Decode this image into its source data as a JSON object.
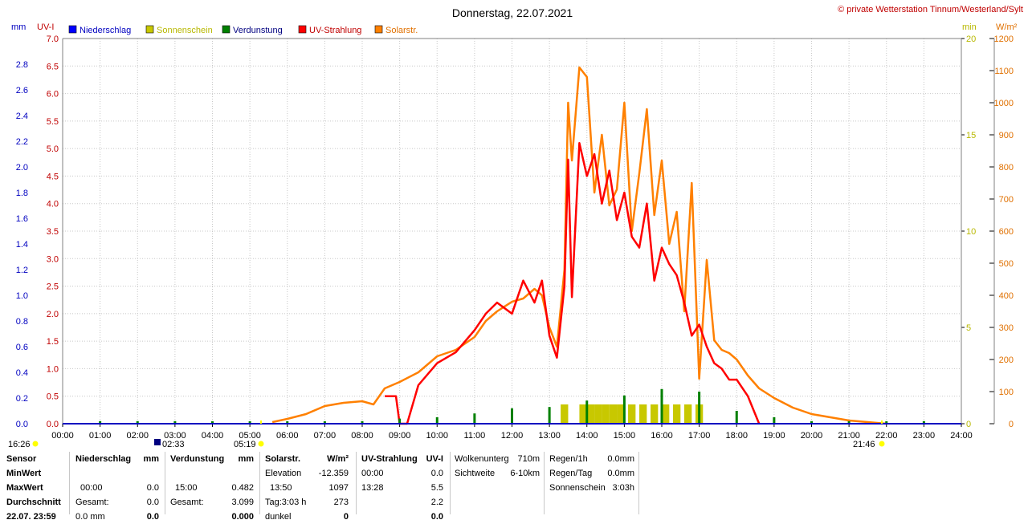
{
  "title": "Donnerstag, 22.07.2021",
  "copyright": "© private Wetterstation Tinnum/Westerland/Sylt",
  "units": {
    "mm": "mm",
    "uvi": "UV-I",
    "min": "min",
    "wm2": "W/m²"
  },
  "legend": [
    {
      "label": "Niederschlag",
      "color": "#0000ff",
      "text_color": "#0000c0"
    },
    {
      "label": "Sonnenschein",
      "color": "#c8c800",
      "text_color": "#b8b800"
    },
    {
      "label": "Verdunstung",
      "color": "#008000",
      "text_color": "#000080"
    },
    {
      "label": "UV-Strahlung",
      "color": "#ff0000",
      "text_color": "#c00000"
    },
    {
      "label": "Solarstr.",
      "color": "#ff8000",
      "text_color": "#e07000"
    }
  ],
  "sun_markers": {
    "sunrise": "05:19",
    "sunset": "21:46",
    "moon_left": "16:26",
    "moon_mid": "02:33"
  },
  "chart_data": {
    "type": "line",
    "x_ticks": [
      "00:00",
      "01:00",
      "02:00",
      "03:00",
      "04:00",
      "05:00",
      "06:00",
      "07:00",
      "08:00",
      "09:00",
      "10:00",
      "11:00",
      "12:00",
      "13:00",
      "14:00",
      "15:00",
      "16:00",
      "17:00",
      "18:00",
      "19:00",
      "20:00",
      "21:00",
      "22:00",
      "23:00",
      "24:00"
    ],
    "xlim": [
      0,
      24
    ],
    "axes": {
      "mm": {
        "lim": [
          0,
          3.0
        ],
        "ticks": [
          "0.0",
          "0.2",
          "0.4",
          "0.6",
          "0.8",
          "1.0",
          "1.2",
          "1.4",
          "1.6",
          "1.8",
          "2.0",
          "2.2",
          "2.4",
          "2.6",
          "2.8"
        ]
      },
      "uvi": {
        "lim": [
          0,
          7.0
        ],
        "ticks": [
          "0.0",
          "0.5",
          "1.0",
          "1.5",
          "2.0",
          "2.5",
          "3.0",
          "3.5",
          "4.0",
          "4.5",
          "5.0",
          "5.5",
          "6.0",
          "6.5",
          "7.0"
        ]
      },
      "min": {
        "lim": [
          0,
          20
        ],
        "ticks": [
          "0",
          "5",
          "10",
          "15",
          "20"
        ]
      },
      "wm2": {
        "lim": [
          0,
          1200
        ],
        "ticks": [
          "0",
          "100",
          "200",
          "300",
          "400",
          "500",
          "600",
          "700",
          "800",
          "900",
          "1000",
          "1100",
          "1200"
        ]
      }
    },
    "series": [
      {
        "name": "Solarstr.",
        "axis": "wm2",
        "color": "#ff8000",
        "x": [
          5.6,
          6.0,
          6.5,
          7.0,
          7.5,
          8.0,
          8.3,
          8.6,
          9.0,
          9.5,
          10.0,
          10.5,
          11.0,
          11.3,
          11.6,
          12.0,
          12.3,
          12.6,
          12.8,
          13.0,
          13.2,
          13.4,
          13.5,
          13.6,
          13.8,
          14.0,
          14.2,
          14.4,
          14.6,
          14.8,
          15.0,
          15.2,
          15.4,
          15.6,
          15.8,
          16.0,
          16.2,
          16.4,
          16.6,
          16.8,
          17.0,
          17.2,
          17.4,
          17.6,
          17.8,
          18.0,
          18.3,
          18.6,
          19.0,
          19.5,
          20.0,
          20.5,
          21.0,
          21.5,
          22.0
        ],
        "y": [
          5,
          15,
          30,
          55,
          65,
          70,
          60,
          110,
          130,
          160,
          210,
          230,
          270,
          320,
          350,
          380,
          390,
          420,
          400,
          300,
          240,
          480,
          1000,
          820,
          1110,
          1080,
          720,
          900,
          680,
          730,
          1000,
          600,
          780,
          980,
          650,
          820,
          560,
          660,
          350,
          750,
          140,
          510,
          260,
          230,
          220,
          200,
          150,
          110,
          80,
          50,
          30,
          20,
          10,
          5,
          0
        ]
      },
      {
        "name": "UV-Strahlung",
        "axis": "uvi",
        "color": "#ff0000",
        "x": [
          8.6,
          8.9,
          9.0,
          9.2,
          9.5,
          10.0,
          10.5,
          11.0,
          11.3,
          11.6,
          12.0,
          12.3,
          12.6,
          12.8,
          13.0,
          13.2,
          13.4,
          13.5,
          13.6,
          13.8,
          14.0,
          14.2,
          14.4,
          14.6,
          14.8,
          15.0,
          15.2,
          15.4,
          15.6,
          15.8,
          16.0,
          16.2,
          16.4,
          16.6,
          16.8,
          17.0,
          17.2,
          17.4,
          17.6,
          17.8,
          18.0,
          18.3,
          18.6
        ],
        "y": [
          0.5,
          0.5,
          0.0,
          0.0,
          0.7,
          1.1,
          1.3,
          1.7,
          2.0,
          2.2,
          2.0,
          2.6,
          2.2,
          2.6,
          1.6,
          1.2,
          2.5,
          4.8,
          2.3,
          5.1,
          4.5,
          4.9,
          4.0,
          4.6,
          3.7,
          4.2,
          3.4,
          3.2,
          4.0,
          2.6,
          3.2,
          2.9,
          2.7,
          2.2,
          1.6,
          1.8,
          1.4,
          1.1,
          1.0,
          0.8,
          0.8,
          0.5,
          0.0
        ]
      }
    ],
    "bars": [
      {
        "name": "Verdunstung",
        "axis": "mm",
        "color": "#008000",
        "x": [
          1,
          2,
          3,
          4,
          5,
          6,
          7,
          8,
          9,
          10,
          11,
          12,
          13,
          14,
          15,
          16,
          17,
          18,
          19,
          20,
          21,
          22,
          23
        ],
        "values": [
          0.02,
          0.02,
          0.02,
          0.01,
          0.01,
          0.0,
          0.01,
          0.02,
          0.04,
          0.05,
          0.08,
          0.12,
          0.13,
          0.18,
          0.22,
          0.27,
          0.25,
          0.1,
          0.05,
          0.02,
          0.01,
          0.01,
          0.02
        ]
      },
      {
        "name": "Sonnenschein",
        "axis": "min",
        "color": "#c8c800",
        "x": [
          13.4,
          13.9,
          14.1,
          14.3,
          14.5,
          14.7,
          14.9,
          15.2,
          15.5,
          15.8,
          16.1,
          16.4,
          16.7,
          17.0
        ],
        "values": [
          1,
          1,
          1,
          1,
          1,
          1,
          1,
          1,
          1,
          1,
          1,
          1,
          1,
          1
        ]
      }
    ]
  },
  "stats": {
    "labels": [
      "Sensor",
      "MinWert",
      "MaxWert",
      "Durchschnitt",
      "22.07. 23:59"
    ],
    "niederschlag": {
      "header": "Niederschlag",
      "unit": "mm",
      "rows": [
        [
          "",
          ""
        ],
        [
          "00:00",
          "0.0"
        ],
        [
          "Gesamt:",
          "0.0"
        ],
        [
          "0.0 mm",
          "0.0"
        ]
      ]
    },
    "verdunstung": {
      "header": "Verdunstung",
      "unit": "mm",
      "rows": [
        [
          "",
          ""
        ],
        [
          "15:00",
          "0.482"
        ],
        [
          "Gesamt:",
          "3.099"
        ],
        [
          "",
          "0.000"
        ]
      ]
    },
    "solarstr": {
      "header": "Solarstr.",
      "unit": "W/m²",
      "rows": [
        [
          "Elevation",
          "-12.359"
        ],
        [
          "13:50",
          "1097"
        ],
        [
          "Tag:3:03 h",
          "273"
        ],
        [
          "dunkel",
          "0"
        ]
      ]
    },
    "uv": {
      "header": "UV-Strahlung",
      "unit": "UV-I",
      "rows": [
        [
          "00:00",
          "0.0"
        ],
        [
          "13:28",
          "5.5"
        ],
        [
          "",
          "2.2"
        ],
        [
          "",
          "0.0"
        ]
      ]
    },
    "wolken": {
      "rows": [
        [
          "Wolkenunterg",
          "710m"
        ],
        [
          "Sichtweite",
          "6-10km"
        ]
      ]
    },
    "regen": {
      "rows": [
        [
          "Regen/1h",
          "0.0mm"
        ],
        [
          "Regen/Tag",
          "0.0mm"
        ],
        [
          "Sonnenschein",
          "3:03h"
        ]
      ]
    }
  }
}
